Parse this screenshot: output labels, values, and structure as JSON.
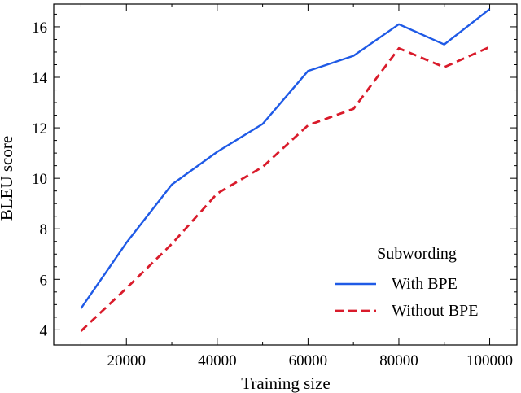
{
  "chart_data": {
    "type": "line",
    "xlabel": "Training size",
    "ylabel": "BLEU score",
    "xlim": [
      4000,
      106000
    ],
    "ylim": [
      3.4,
      16.9
    ],
    "xticks": [
      20000,
      40000,
      60000,
      80000,
      100000
    ],
    "yticks": [
      4,
      6,
      8,
      10,
      12,
      14,
      16
    ],
    "x": [
      10000,
      20000,
      30000,
      40000,
      50000,
      60000,
      70000,
      80000,
      90000,
      100000
    ],
    "series": [
      {
        "name": "With BPE",
        "color": "#1f5ae6",
        "style": "solid",
        "values": [
          4.85,
          7.45,
          9.75,
          11.05,
          12.15,
          14.25,
          14.85,
          16.1,
          15.3,
          16.7
        ]
      },
      {
        "name": "Without BPE",
        "color": "#d91b2b",
        "style": "dashed",
        "values": [
          3.95,
          5.65,
          7.4,
          9.4,
          10.45,
          12.1,
          12.75,
          15.15,
          14.4,
          15.2
        ]
      }
    ],
    "legend": {
      "title": "Subwording",
      "position": "bottom-right"
    },
    "grid": false
  }
}
